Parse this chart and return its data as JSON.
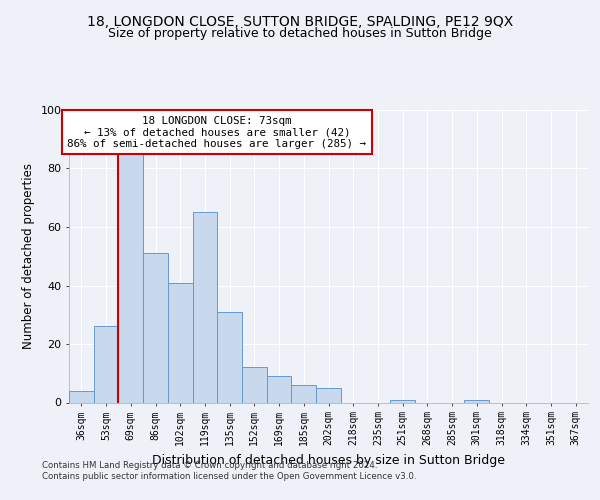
{
  "title1": "18, LONGDON CLOSE, SUTTON BRIDGE, SPALDING, PE12 9QX",
  "title2": "Size of property relative to detached houses in Sutton Bridge",
  "xlabel": "Distribution of detached houses by size in Sutton Bridge",
  "ylabel": "Number of detached properties",
  "footer1": "Contains HM Land Registry data © Crown copyright and database right 2024.",
  "footer2": "Contains public sector information licensed under the Open Government Licence v3.0.",
  "bin_labels": [
    "36sqm",
    "53sqm",
    "69sqm",
    "86sqm",
    "102sqm",
    "119sqm",
    "135sqm",
    "152sqm",
    "169sqm",
    "185sqm",
    "202sqm",
    "218sqm",
    "235sqm",
    "251sqm",
    "268sqm",
    "285sqm",
    "301sqm",
    "318sqm",
    "334sqm",
    "351sqm",
    "367sqm"
  ],
  "bar_values": [
    4,
    26,
    85,
    51,
    41,
    65,
    31,
    12,
    9,
    6,
    5,
    0,
    0,
    1,
    0,
    0,
    1,
    0,
    0,
    0,
    0
  ],
  "bar_color": "#c9d9ed",
  "bar_edge_color": "#6699cc",
  "highlight_bin": 2,
  "highlight_line_color": "#cc0000",
  "annotation_text": "18 LONGDON CLOSE: 73sqm\n← 13% of detached houses are smaller (42)\n86% of semi-detached houses are larger (285) →",
  "ylim": [
    0,
    100
  ],
  "yticks": [
    0,
    20,
    40,
    60,
    80,
    100
  ],
  "background_color": "#eef2f8",
  "plot_bg_color": "#eef2f8",
  "grid_color": "#ffffff",
  "title1_fontsize": 10,
  "title2_fontsize": 9,
  "xlabel_fontsize": 9,
  "ylabel_fontsize": 8.5
}
